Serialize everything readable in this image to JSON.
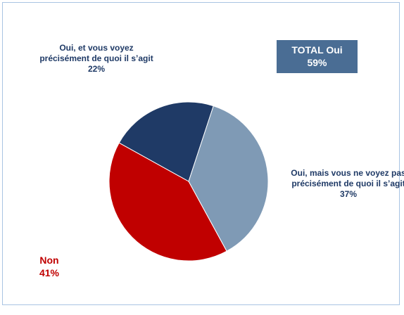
{
  "chart_data": {
    "type": "pie",
    "categories": [
      "Oui, et vous voyez précisément de quoi il s’agit",
      "Oui, mais vous ne voyez pas précisément de quoi il s’agit",
      "Non"
    ],
    "values": [
      22,
      37,
      41
    ],
    "value_labels": [
      "22%",
      "37%",
      "41%"
    ],
    "colors": [
      "#1f3a66",
      "#7f9ab5",
      "#c00000"
    ],
    "label_colors": [
      "#1f3a66",
      "#1f3a66",
      "#c00000"
    ],
    "annotation": {
      "title": "TOTAL Oui",
      "text": "59%"
    }
  }
}
